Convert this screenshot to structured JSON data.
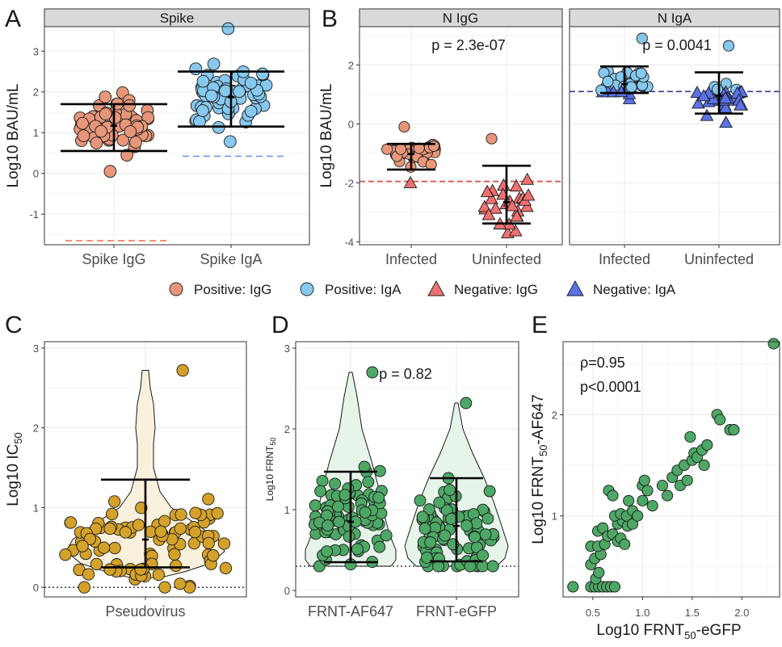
{
  "colors": {
    "igg_point": "#e8967a",
    "iga_point": "#87c8ee",
    "igg_triangle": "#ef7070",
    "iga_triangle": "#5b72e6",
    "igg_cutoff": "#d6483a",
    "iga_cutoff": "#3a3a9a",
    "spike_igg_cutoff": "#f07a4a",
    "spike_iga_cutoff": "#6a9be8",
    "gold_point": "#d4a22a",
    "green_point": "#4da765",
    "strip_bg": "#d9d9d9",
    "grid": "#ebebeb"
  },
  "panel_labels": {
    "a": "A",
    "b": "B",
    "c": "C",
    "d": "D",
    "e": "E"
  },
  "legend": {
    "entries": [
      {
        "label": "Positive: IgG",
        "shape": "circle",
        "color": "#e8967a"
      },
      {
        "label": "Positive: IgA",
        "shape": "circle",
        "color": "#87c8ee"
      },
      {
        "label": "Negative: IgG",
        "shape": "triangle",
        "color": "#ef7070"
      },
      {
        "label": "Negative: IgA",
        "shape": "triangle",
        "color": "#5b72e6"
      }
    ]
  },
  "chart_data": [
    {
      "id": "A",
      "type": "scatter",
      "strip": "Spike",
      "ylabel": "Log10 BAU/mL",
      "ylim": [
        -1.75,
        3.6
      ],
      "yticks": [
        "-1",
        "0",
        "1",
        "2",
        "3"
      ],
      "ytick_values": [
        -1,
        0,
        1,
        2,
        3
      ],
      "categories": [
        "Spike IgG",
        "Spike IgA"
      ],
      "cutoffs": [
        -1.65,
        0.42
      ],
      "summary": [
        {
          "mean": 1.17,
          "lower": 0.55,
          "upper": 1.7
        },
        {
          "mean": 1.87,
          "lower": 1.15,
          "upper": 2.5
        }
      ],
      "series": [
        {
          "name": "Spike IgG",
          "count": 64,
          "min": 0.05,
          "max": 1.98,
          "center": 1.17,
          "spread": 0.6
        },
        {
          "name": "Spike IgA",
          "count": 72,
          "min": 0.78,
          "max": 3.55,
          "center": 1.87,
          "spread": 0.62
        }
      ]
    },
    {
      "id": "B",
      "type": "scatter",
      "strips": [
        "N IgG",
        "N IgA"
      ],
      "ylabel": "Log10 BAU/mL",
      "ylim": [
        -4.1,
        3.3
      ],
      "yticks": [
        "-4",
        "-2",
        "0",
        "2"
      ],
      "ytick_values": [
        -4,
        -2,
        0,
        2
      ],
      "categories": [
        "Infected",
        "Uninfected"
      ],
      "facets": [
        {
          "name": "N IgG",
          "p_value": "p = 2.3e-07",
          "cutoff": -1.95,
          "summary": [
            {
              "mean": -1.02,
              "lower": -1.55,
              "upper": -0.68
            },
            {
              "mean": -2.65,
              "lower": -3.38,
              "upper": -1.42
            }
          ],
          "series": [
            {
              "name": "Infected",
              "count": 40,
              "min": -2.0,
              "max": -0.1,
              "center": -1.02,
              "spread": 0.45
            },
            {
              "name": "Uninfected",
              "count": 28,
              "min": -3.7,
              "max": -0.5,
              "center": -2.65,
              "spread": 0.8
            }
          ]
        },
        {
          "name": "N IgA",
          "p_value": "p = 0.0041",
          "cutoff": 1.1,
          "summary": [
            {
              "mean": 1.35,
              "lower": 1.05,
              "upper": 1.95
            },
            {
              "mean": 0.95,
              "lower": 0.35,
              "upper": 1.75
            }
          ],
          "series": [
            {
              "name": "Infected",
              "count": 42,
              "min": 0.85,
              "max": 2.9,
              "center": 1.35,
              "spread": 0.4
            },
            {
              "name": "Uninfected",
              "count": 30,
              "min": 0.05,
              "max": 2.65,
              "center": 0.95,
              "spread": 0.55
            }
          ]
        }
      ]
    },
    {
      "id": "C",
      "type": "scatter",
      "subtype": "violin",
      "ylabel_main": "Log10 IC",
      "ylabel_sub": "50",
      "ylim": [
        -0.12,
        3.08
      ],
      "yticks": [
        "0",
        "1",
        "2",
        "3"
      ],
      "ytick_values": [
        0,
        1,
        2,
        3
      ],
      "categories": [
        "Pseudovirus"
      ],
      "cutoff": 0,
      "summary": {
        "mean": 0.6,
        "lower": 0.25,
        "upper": 1.35
      },
      "series": [
        {
          "name": "Pseudovirus",
          "count": 90,
          "min": 0.0,
          "max": 2.72,
          "center": 0.6,
          "spread": 0.5
        }
      ]
    },
    {
      "id": "D",
      "type": "scatter",
      "subtype": "violin",
      "ylabel_main": "Log10 FRNT",
      "ylabel_sub": "50",
      "ylim": [
        -0.08,
        3.08
      ],
      "yticks": [
        "0",
        "1",
        "2",
        "3"
      ],
      "ytick_values": [
        0,
        1,
        2,
        3
      ],
      "categories": [
        "FRNT-AF647",
        "FRNT-eGFP"
      ],
      "p_value": "p = 0.82",
      "cutoff": 0.3,
      "summary": [
        {
          "mean": 0.85,
          "lower": 0.35,
          "upper": 1.47
        },
        {
          "mean": 0.8,
          "lower": 0.36,
          "upper": 1.39
        }
      ],
      "series": [
        {
          "name": "FRNT-AF647",
          "count": 85,
          "min": 0.3,
          "max": 2.7,
          "center": 0.85,
          "spread": 0.55
        },
        {
          "name": "FRNT-eGFP",
          "count": 85,
          "min": 0.3,
          "max": 2.32,
          "center": 0.8,
          "spread": 0.52
        }
      ]
    },
    {
      "id": "E",
      "type": "scatter",
      "xlabel_main": "Log10 FRNT",
      "xlabel_sub": "50",
      "xlabel_tail": "-eGFP",
      "ylabel_main": "Log10 FRNT",
      "ylabel_sub": "50",
      "ylabel_tail": "-AF647",
      "xlim": [
        0.2,
        2.38
      ],
      "ylim": [
        0.2,
        2.72
      ],
      "xticks": [
        "0.5",
        "1.0",
        "1.5",
        "2.0"
      ],
      "xtick_values": [
        0.5,
        1.0,
        1.5,
        2.0
      ],
      "yticks": [
        "1",
        "2"
      ],
      "ytick_values": [
        1,
        2
      ],
      "stat_rho": "ρ=0.95",
      "stat_p": "p<0.0001",
      "points": [
        [
          0.3,
          0.3
        ],
        [
          0.48,
          0.3
        ],
        [
          0.52,
          0.3
        ],
        [
          0.56,
          0.3
        ],
        [
          0.6,
          0.3
        ],
        [
          0.64,
          0.3
        ],
        [
          0.68,
          0.3
        ],
        [
          0.72,
          0.3
        ],
        [
          0.53,
          0.38
        ],
        [
          0.56,
          0.44
        ],
        [
          0.48,
          0.52
        ],
        [
          0.52,
          0.58
        ],
        [
          0.58,
          0.62
        ],
        [
          0.48,
          0.7
        ],
        [
          0.55,
          0.7
        ],
        [
          0.62,
          0.72
        ],
        [
          0.55,
          0.85
        ],
        [
          0.6,
          0.88
        ],
        [
          0.65,
          0.8
        ],
        [
          0.7,
          0.82
        ],
        [
          0.75,
          0.75
        ],
        [
          0.78,
          0.78
        ],
        [
          0.82,
          0.72
        ],
        [
          0.75,
          0.92
        ],
        [
          0.8,
          0.95
        ],
        [
          0.85,
          0.9
        ],
        [
          0.72,
          1.0
        ],
        [
          0.78,
          1.02
        ],
        [
          0.84,
          1.0
        ],
        [
          0.9,
          1.05
        ],
        [
          0.66,
          1.25
        ],
        [
          0.7,
          1.2
        ],
        [
          0.86,
          1.15
        ],
        [
          0.9,
          0.92
        ],
        [
          0.95,
          1.0
        ],
        [
          1.0,
          1.15
        ],
        [
          1.0,
          1.3
        ],
        [
          1.05,
          1.25
        ],
        [
          1.02,
          1.35
        ],
        [
          1.1,
          1.1
        ],
        [
          1.2,
          1.3
        ],
        [
          1.25,
          1.2
        ],
        [
          1.3,
          1.38
        ],
        [
          1.35,
          1.45
        ],
        [
          1.38,
          1.3
        ],
        [
          1.42,
          1.5
        ],
        [
          1.45,
          1.35
        ],
        [
          1.5,
          1.55
        ],
        [
          1.52,
          1.62
        ],
        [
          1.48,
          1.78
        ],
        [
          1.55,
          1.58
        ],
        [
          1.6,
          1.65
        ],
        [
          1.62,
          1.5
        ],
        [
          1.65,
          1.7
        ],
        [
          1.75,
          2.0
        ],
        [
          1.78,
          1.95
        ],
        [
          1.88,
          1.85
        ],
        [
          1.92,
          1.85
        ],
        [
          2.32,
          2.7
        ]
      ]
    }
  ]
}
